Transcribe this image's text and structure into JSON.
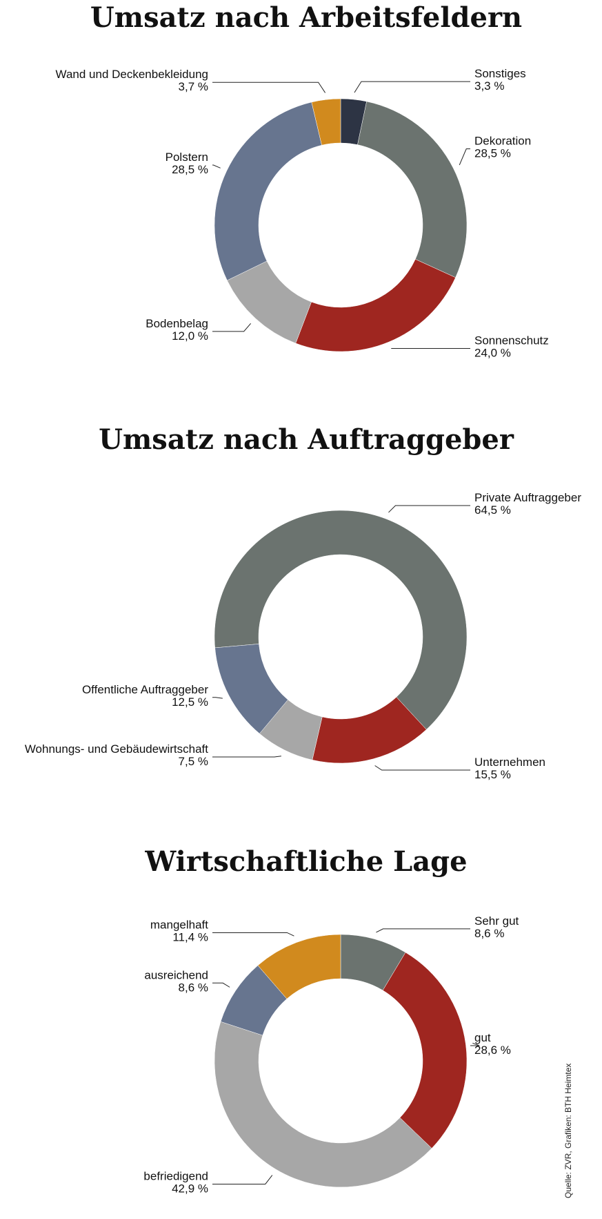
{
  "chart_data": [
    {
      "type": "donut",
      "title": "Umsatz nach Arbeitsfeldern",
      "start_angle": 0,
      "categories": [
        "Sonstiges",
        "Dekoration",
        "Sonnenschutz",
        "Bodenbelag",
        "Polstern",
        "Wand und Deckenbekleidung"
      ],
      "values": [
        3.3,
        28.5,
        24.0,
        12.0,
        28.5,
        3.7
      ],
      "value_labels": [
        "3,3 %",
        "28,5 %",
        "24,0 %",
        "12,0 %",
        "28,5 %",
        "3,7 %"
      ],
      "colors": [
        "#2d3444",
        "#6b736f",
        "#9f2620",
        "#a7a7a7",
        "#67758f",
        "#d18a1e"
      ]
    },
    {
      "type": "donut",
      "title": "Umsatz nach Auftraggeber",
      "start_angle": 265,
      "categories": [
        "Private Auftraggeber",
        "Unternehmen",
        "Wohnungs- und Gebäudewirtschaft",
        "Offentliche Auftraggeber"
      ],
      "values": [
        64.5,
        15.5,
        7.5,
        12.5
      ],
      "value_labels": [
        "64,5 %",
        "15,5 %",
        "7,5 %",
        "12,5 %"
      ],
      "colors": [
        "#6b736f",
        "#9f2620",
        "#a7a7a7",
        "#67758f"
      ]
    },
    {
      "type": "donut",
      "title": "Wirtschaftliche Lage",
      "start_angle": 0,
      "categories": [
        "Sehr gut",
        "gut",
        "befriedigend",
        "ausreichend",
        "mangelhaft"
      ],
      "values": [
        8.6,
        28.6,
        42.9,
        8.6,
        11.4
      ],
      "value_labels": [
        "8,6 %",
        "28,6 %",
        "42,9 %",
        "8,6 %",
        "11,4 %"
      ],
      "colors": [
        "#6b736f",
        "#9f2620",
        "#a7a7a7",
        "#67758f",
        "#d18a1e"
      ]
    }
  ],
  "source": "Quelle: ZVR, Grafiken: BTH Heimtex"
}
